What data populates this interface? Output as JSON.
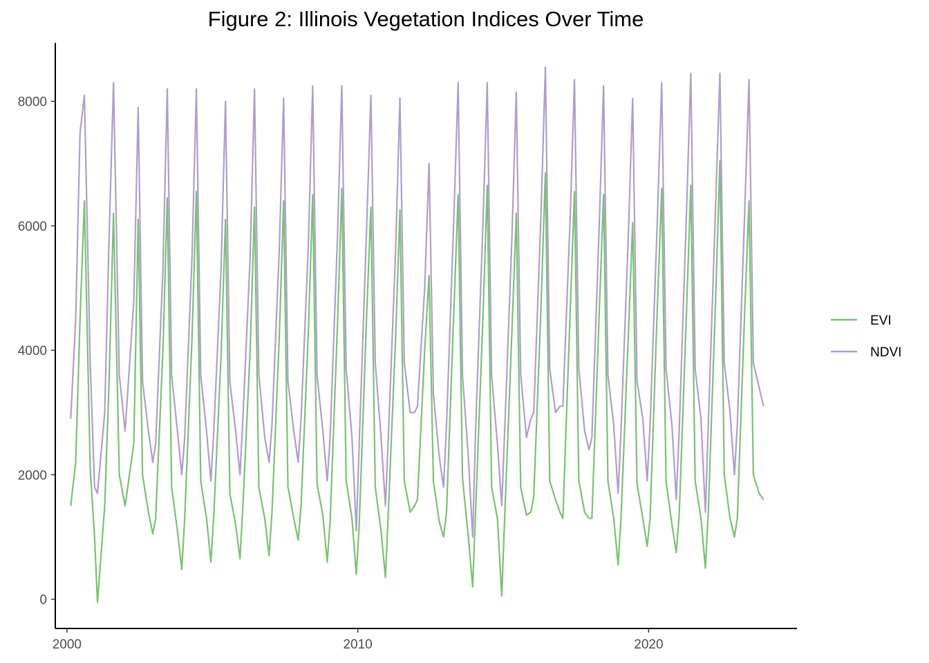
{
  "chart_data": {
    "type": "line",
    "title": "Figure 2: Illinois Vegetation Indices Over Time",
    "xlabel": "",
    "ylabel": "",
    "xlim": [
      1999.6,
      2025.1
    ],
    "ylim": [
      -470,
      8940
    ],
    "x_ticks": [
      2000,
      2010,
      2020
    ],
    "x_tick_labels": [
      "2000",
      "2010",
      "2020"
    ],
    "y_ticks": [
      0,
      2000,
      4000,
      6000,
      8000
    ],
    "y_tick_labels": [
      "0",
      "2000",
      "4000",
      "6000",
      "8000"
    ],
    "grid": false,
    "legend_position": "right",
    "colors": {
      "EVI": "#77c36e",
      "NDVI": "#b09cce"
    },
    "series": [
      {
        "name": "EVI",
        "x": [
          2000.13,
          2000.3,
          2000.45,
          2000.6,
          2000.8,
          2000.95,
          2001.05,
          2001.3,
          2001.45,
          2001.6,
          2001.8,
          2002.0,
          2002.3,
          2002.45,
          2002.6,
          2002.8,
          2002.95,
          2003.05,
          2003.3,
          2003.45,
          2003.6,
          2003.8,
          2003.95,
          2004.05,
          2004.3,
          2004.45,
          2004.6,
          2004.8,
          2004.95,
          2005.05,
          2005.3,
          2005.45,
          2005.6,
          2005.8,
          2005.95,
          2006.05,
          2006.3,
          2006.45,
          2006.6,
          2006.8,
          2006.95,
          2007.05,
          2007.3,
          2007.45,
          2007.6,
          2007.8,
          2007.95,
          2008.05,
          2008.3,
          2008.45,
          2008.6,
          2008.8,
          2008.95,
          2009.05,
          2009.3,
          2009.45,
          2009.6,
          2009.8,
          2009.95,
          2010.05,
          2010.3,
          2010.45,
          2010.6,
          2010.8,
          2010.95,
          2011.05,
          2011.3,
          2011.45,
          2011.6,
          2011.8,
          2011.95,
          2012.05,
          2012.3,
          2012.45,
          2012.6,
          2012.8,
          2012.95,
          2013.05,
          2013.3,
          2013.45,
          2013.6,
          2013.8,
          2013.95,
          2014.05,
          2014.3,
          2014.45,
          2014.6,
          2014.8,
          2014.95,
          2015.05,
          2015.3,
          2015.45,
          2015.6,
          2015.8,
          2015.95,
          2016.05,
          2016.3,
          2016.45,
          2016.6,
          2016.8,
          2016.95,
          2017.05,
          2017.3,
          2017.45,
          2017.6,
          2017.8,
          2017.95,
          2018.05,
          2018.3,
          2018.45,
          2018.6,
          2018.8,
          2018.95,
          2019.05,
          2019.3,
          2019.45,
          2019.6,
          2019.8,
          2019.95,
          2020.05,
          2020.3,
          2020.45,
          2020.6,
          2020.8,
          2020.95,
          2021.05,
          2021.3,
          2021.45,
          2021.6,
          2021.8,
          2021.95,
          2022.05,
          2022.3,
          2022.45,
          2022.6,
          2022.8,
          2022.95,
          2023.05,
          2023.3,
          2023.45,
          2023.6,
          2023.8,
          2023.95
        ],
        "y": [
          1500,
          2200,
          4500,
          6400,
          2100,
          1000,
          -50,
          1500,
          3500,
          6200,
          2000,
          1500,
          2500,
          6100,
          2000,
          1400,
          1050,
          1300,
          4000,
          6450,
          1800,
          1100,
          480,
          1300,
          4200,
          6550,
          1900,
          1300,
          600,
          1350,
          3900,
          6100,
          1700,
          1200,
          650,
          1500,
          4000,
          6300,
          1800,
          1300,
          700,
          1400,
          4200,
          6400,
          1800,
          1300,
          950,
          1500,
          4300,
          6500,
          1850,
          1350,
          600,
          1250,
          4400,
          6600,
          1900,
          1300,
          400,
          1200,
          4500,
          6300,
          1800,
          1100,
          350,
          1400,
          4200,
          6250,
          1900,
          1400,
          1500,
          1600,
          4000,
          5200,
          1900,
          1250,
          1000,
          1400,
          4600,
          6500,
          1950,
          1000,
          200,
          1400,
          4500,
          6650,
          1800,
          1300,
          50,
          1300,
          4300,
          6200,
          1800,
          1350,
          1400,
          1650,
          4700,
          6850,
          1900,
          1600,
          1400,
          1300,
          4600,
          6550,
          1900,
          1400,
          1300,
          1300,
          4600,
          6500,
          1900,
          1300,
          550,
          1300,
          4200,
          6050,
          1850,
          1300,
          850,
          1300,
          4700,
          6600,
          1900,
          1200,
          750,
          1350,
          4600,
          6650,
          1900,
          1300,
          500,
          1400,
          4800,
          7050,
          2000,
          1300,
          1000,
          1300,
          4600,
          6400,
          2000,
          1700,
          1600
        ]
      },
      {
        "name": "NDVI",
        "x": [
          2000.13,
          2000.3,
          2000.45,
          2000.6,
          2000.8,
          2000.95,
          2001.05,
          2001.3,
          2001.45,
          2001.6,
          2001.8,
          2002.0,
          2002.3,
          2002.45,
          2002.6,
          2002.8,
          2002.95,
          2003.05,
          2003.3,
          2003.45,
          2003.6,
          2003.8,
          2003.95,
          2004.05,
          2004.3,
          2004.45,
          2004.6,
          2004.8,
          2004.95,
          2005.05,
          2005.3,
          2005.45,
          2005.6,
          2005.8,
          2005.95,
          2006.05,
          2006.3,
          2006.45,
          2006.6,
          2006.8,
          2006.95,
          2007.05,
          2007.3,
          2007.45,
          2007.6,
          2007.8,
          2007.95,
          2008.05,
          2008.3,
          2008.45,
          2008.6,
          2008.8,
          2008.95,
          2009.05,
          2009.3,
          2009.45,
          2009.6,
          2009.8,
          2009.95,
          2010.05,
          2010.3,
          2010.45,
          2010.6,
          2010.8,
          2010.95,
          2011.05,
          2011.3,
          2011.45,
          2011.6,
          2011.8,
          2011.95,
          2012.05,
          2012.3,
          2012.45,
          2012.6,
          2012.8,
          2012.95,
          2013.05,
          2013.3,
          2013.45,
          2013.6,
          2013.8,
          2013.95,
          2014.05,
          2014.3,
          2014.45,
          2014.6,
          2014.8,
          2014.95,
          2015.05,
          2015.3,
          2015.45,
          2015.6,
          2015.8,
          2015.95,
          2016.05,
          2016.3,
          2016.45,
          2016.6,
          2016.8,
          2016.95,
          2017.05,
          2017.3,
          2017.45,
          2017.6,
          2017.8,
          2017.95,
          2018.05,
          2018.3,
          2018.45,
          2018.6,
          2018.8,
          2018.95,
          2019.05,
          2019.3,
          2019.45,
          2019.6,
          2019.8,
          2019.95,
          2020.05,
          2020.3,
          2020.45,
          2020.6,
          2020.8,
          2020.95,
          2021.05,
          2021.3,
          2021.45,
          2021.6,
          2021.8,
          2021.95,
          2022.05,
          2022.3,
          2022.45,
          2022.6,
          2022.8,
          2022.95,
          2023.05,
          2023.3,
          2023.45,
          2023.6,
          2023.8,
          2023.95
        ],
        "y": [
          2900,
          4500,
          7500,
          8100,
          3800,
          1800,
          1700,
          3000,
          5800,
          8300,
          3600,
          2700,
          4800,
          7900,
          3500,
          2700,
          2200,
          2500,
          5300,
          8200,
          3600,
          2700,
          2000,
          2600,
          5500,
          8200,
          3600,
          2700,
          1900,
          2700,
          5300,
          8000,
          3500,
          2700,
          2000,
          2900,
          5500,
          8200,
          3600,
          2600,
          2200,
          2800,
          5600,
          8050,
          3500,
          2700,
          2200,
          2900,
          5700,
          8250,
          3600,
          2700,
          1900,
          2600,
          5800,
          8250,
          3700,
          2600,
          1100,
          2500,
          5900,
          8100,
          3800,
          2600,
          1500,
          2600,
          5600,
          8050,
          3800,
          3000,
          3000,
          3100,
          5000,
          7000,
          3300,
          2300,
          1800,
          2800,
          6100,
          8300,
          3600,
          2300,
          1000,
          2700,
          6000,
          8300,
          3600,
          2500,
          1500,
          2700,
          5800,
          8150,
          3600,
          2600,
          2900,
          3000,
          6200,
          8550,
          3700,
          3000,
          3100,
          3100,
          6100,
          8350,
          3700,
          2700,
          2400,
          2600,
          6000,
          8250,
          3600,
          2800,
          1700,
          2700,
          5800,
          8050,
          3500,
          2900,
          1900,
          2800,
          6100,
          8300,
          3700,
          2800,
          1600,
          2700,
          6200,
          8450,
          3700,
          2900,
          1400,
          2800,
          6300,
          8450,
          3800,
          3000,
          2000,
          2800,
          6200,
          8350,
          3800,
          3400,
          3100
        ]
      }
    ]
  }
}
